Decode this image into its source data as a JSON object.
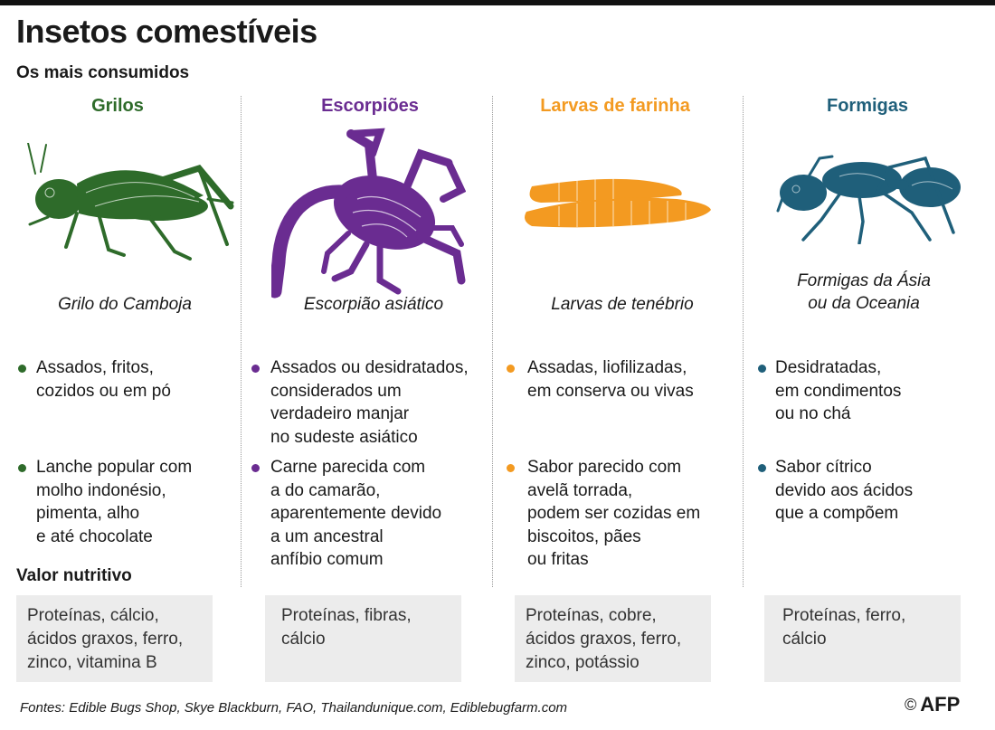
{
  "header": {
    "title": "Insetos comestíveis",
    "subtitle": "Os mais consumidos"
  },
  "colors": {
    "grilos": "#2e6b2a",
    "escorpioes": "#6a2c91",
    "larvas": "#f39a21",
    "formigas": "#1f5f7a"
  },
  "columns": [
    {
      "name": "Grilos",
      "species": "Grilo do Camboja",
      "icon": "cricket-illustration",
      "bullets": [
        "Assados, fritos,\ncozidos ou em pó",
        "Lanche popular com\nmolho indonésio,\npimenta, alho\ne até chocolate"
      ],
      "nutrition": "Proteínas, cálcio,\nácidos graxos, ferro,\nzinco, vitamina B"
    },
    {
      "name": "Escorpiões",
      "species": "Escorpião asiático",
      "icon": "scorpion-illustration",
      "bullets": [
        "Assados ou desidratados,\nconsiderados um\nverdadeiro manjar\nno sudeste asiático",
        "Carne parecida com\na do camarão,\naparentemente devido\na um ancestral\nanfíbio comum"
      ],
      "nutrition": "Proteínas, fibras,\ncálcio"
    },
    {
      "name": "Larvas de farinha",
      "species": "Larvas de tenébrio",
      "icon": "mealworm-illustration",
      "bullets": [
        "Assadas, liofilizadas,\nem conserva ou vivas",
        "Sabor parecido com\navelã torrada,\npodem ser cozidas em\nbiscoitos, pães\nou fritas"
      ],
      "nutrition": "Proteínas, cobre,\nácidos graxos, ferro,\nzinco, potássio"
    },
    {
      "name": "Formigas",
      "species": "Formigas da Ásia\nou da Oceania",
      "icon": "ant-illustration",
      "bullets": [
        "Desidratadas,\nem condimentos\nou no chá",
        "Sabor cítrico\ndevido aos ácidos\nque a compõem"
      ],
      "nutrition": "Proteínas, ferro,\ncálcio"
    }
  ],
  "nutrition_label": "Valor nutritivo",
  "sources": "Fontes: Edible Bugs Shop, Skye Blackburn, FAO, Thailandunique.com, Ediblebugfarm.com",
  "credit": {
    "symbol": "©",
    "agency": "AFP"
  }
}
